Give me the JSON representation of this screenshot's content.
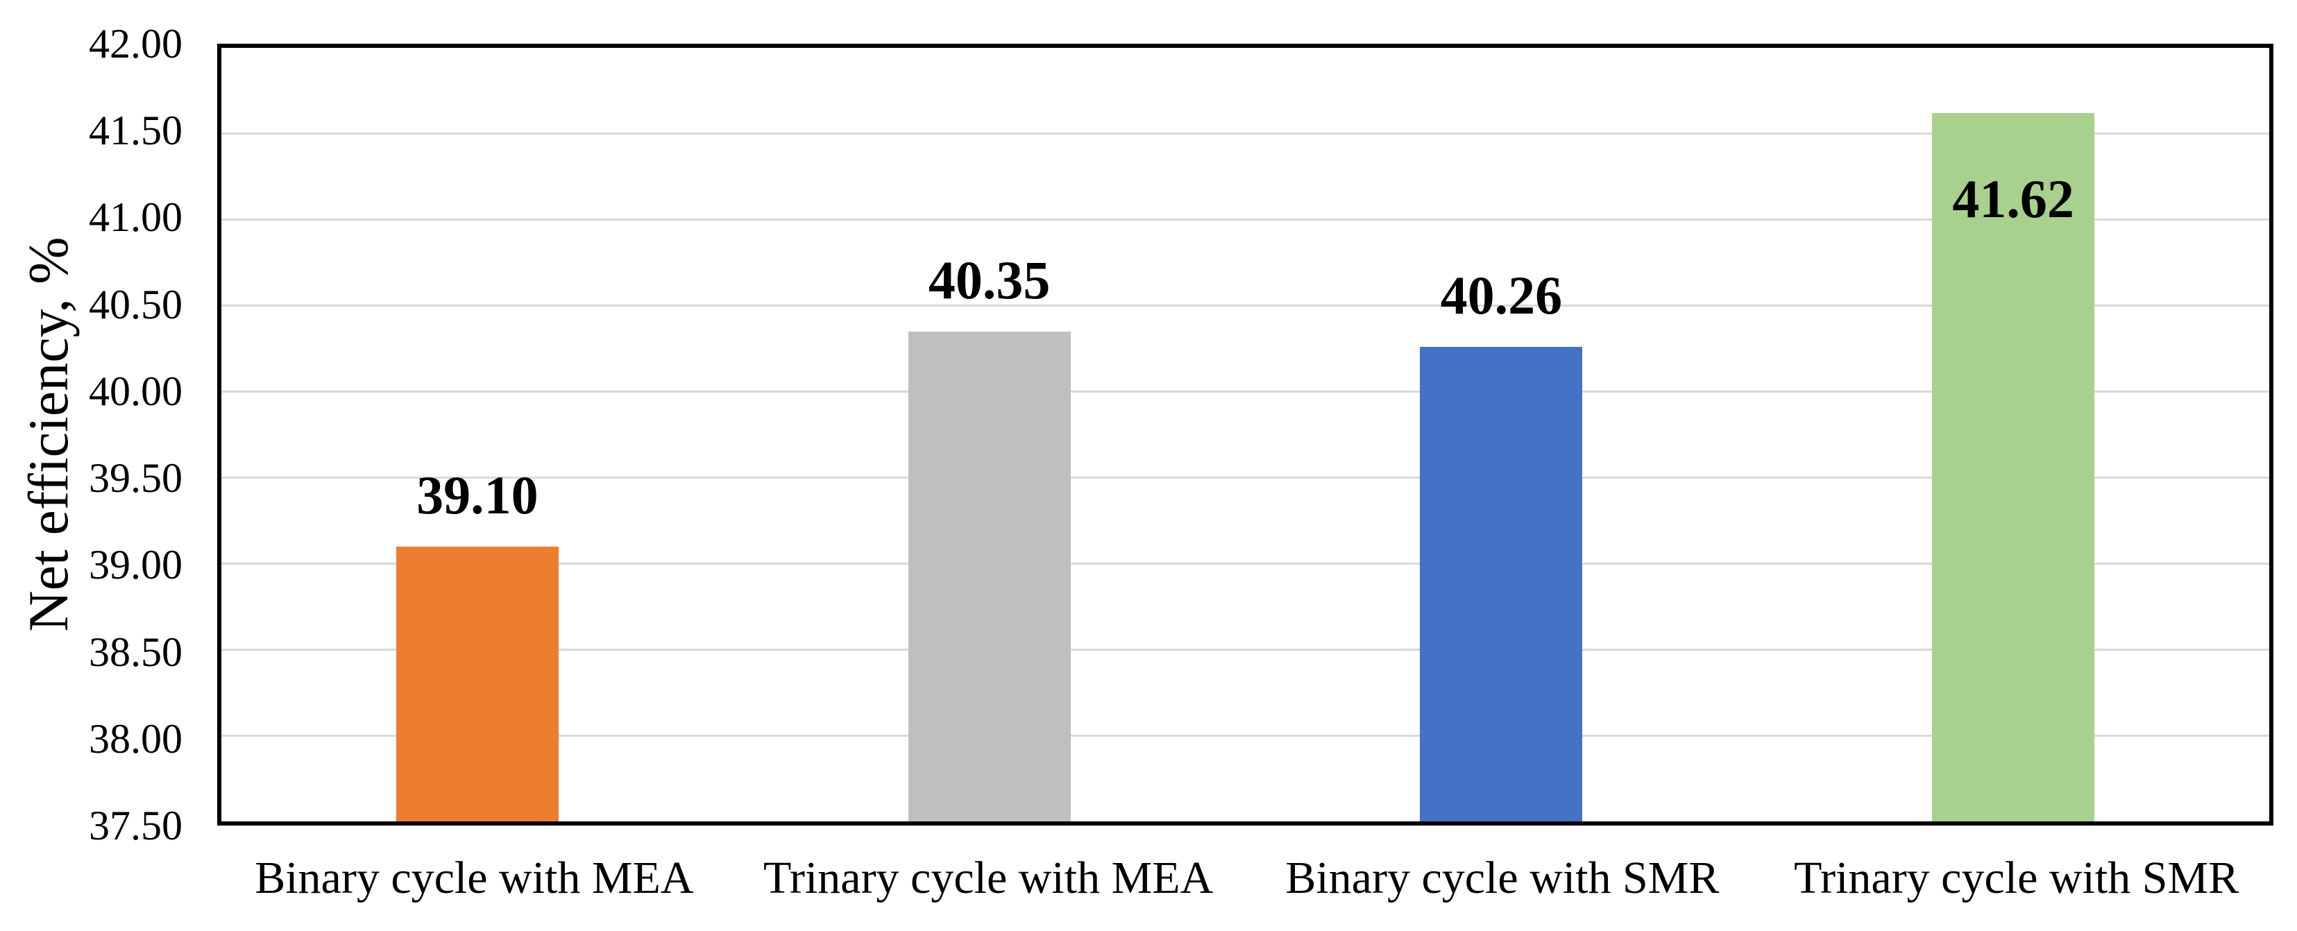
{
  "chart_data": {
    "type": "bar",
    "title": "",
    "xlabel": "",
    "ylabel": "Net efficiency, %",
    "categories": [
      "Binary cycle with MEA",
      "Trinary cycle with MEA",
      "Binary cycle with SMR",
      "Trinary cycle with SMR"
    ],
    "values": [
      39.1,
      40.35,
      40.26,
      41.62
    ],
    "data_labels": [
      "39.10",
      "40.35",
      "40.26",
      "41.62"
    ],
    "label_placement": [
      "above",
      "above",
      "above",
      "inside"
    ],
    "bar_colors": [
      "#ED7D31",
      "#BFBFBF",
      "#4472C4",
      "#A9D18E"
    ],
    "ylim": [
      37.5,
      42.0
    ],
    "y_ticks": [
      "37.50",
      "38.00",
      "38.50",
      "39.00",
      "39.50",
      "40.00",
      "40.50",
      "41.00",
      "41.50",
      "42.00"
    ],
    "grid": "horizontal",
    "gridline_color": "#D9D9D9",
    "axis_border_color": "#000000",
    "text_color": "#000000",
    "background_color": "#FFFFFF",
    "legend": "none"
  }
}
